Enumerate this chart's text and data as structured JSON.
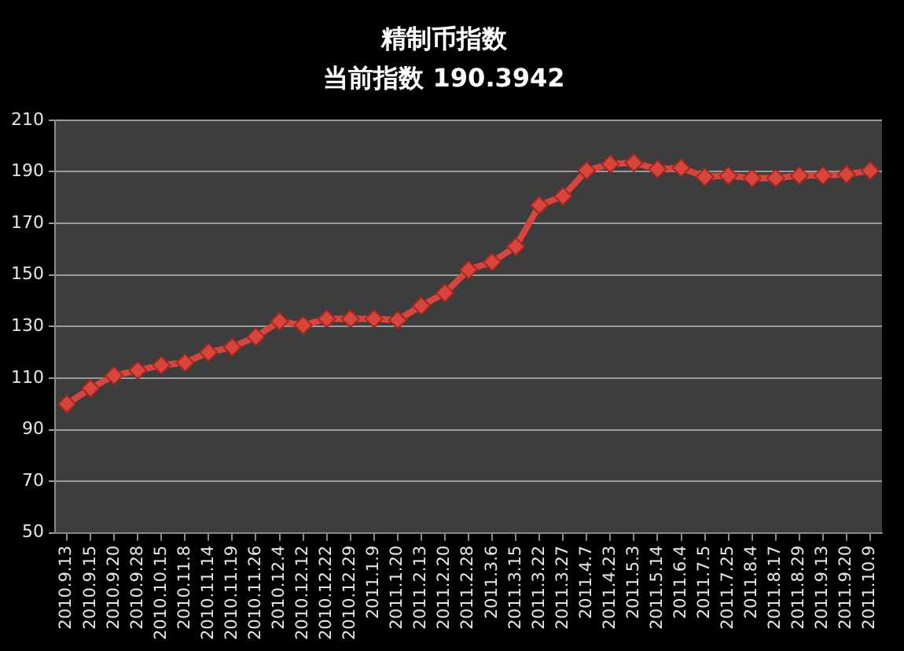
{
  "chart_data": {
    "type": "line",
    "title": "精制币指数",
    "subtitle": "当前指数 190.3942",
    "categories": [
      "2010.9.13",
      "2010.9.15",
      "2010.9.20",
      "2010.9.28",
      "2010.10.15",
      "2010.11.8",
      "2010.11.14",
      "2010.11.19",
      "2010.11.26",
      "2010.12.4",
      "2010.12.12",
      "2010.12.22",
      "2010.12.29",
      "2011.1.9",
      "2011.1.20",
      "2011.2.13",
      "2011.2.20",
      "2011.2.28",
      "2011.3.6",
      "2011.3.15",
      "2011.3.22",
      "2011.3.27",
      "2011.4.7",
      "2011.4.23",
      "2011.5.3",
      "2011.5.14",
      "2011.6.4",
      "2011.7.5",
      "2011.7.25",
      "2011.8.4",
      "2011.8.17",
      "2011.8.29",
      "2011.9.13",
      "2011.9.20",
      "2011.10.9"
    ],
    "values": [
      100,
      106,
      111,
      113,
      115,
      116,
      120,
      122,
      126,
      132,
      130.5,
      133,
      133,
      133,
      132.5,
      138,
      143,
      152,
      155,
      161,
      177,
      180.5,
      190.5,
      193,
      193.5,
      191,
      191.5,
      188,
      188.5,
      187.5,
      187.5,
      188.5,
      188.5,
      189,
      190.4
    ],
    "color": "#d9453c",
    "ylim": [
      50,
      210
    ],
    "yticks": [
      50,
      70,
      90,
      110,
      130,
      150,
      170,
      190,
      210
    ],
    "grid": "y",
    "legend": false,
    "marker": "diamond",
    "line_style": "solid"
  }
}
